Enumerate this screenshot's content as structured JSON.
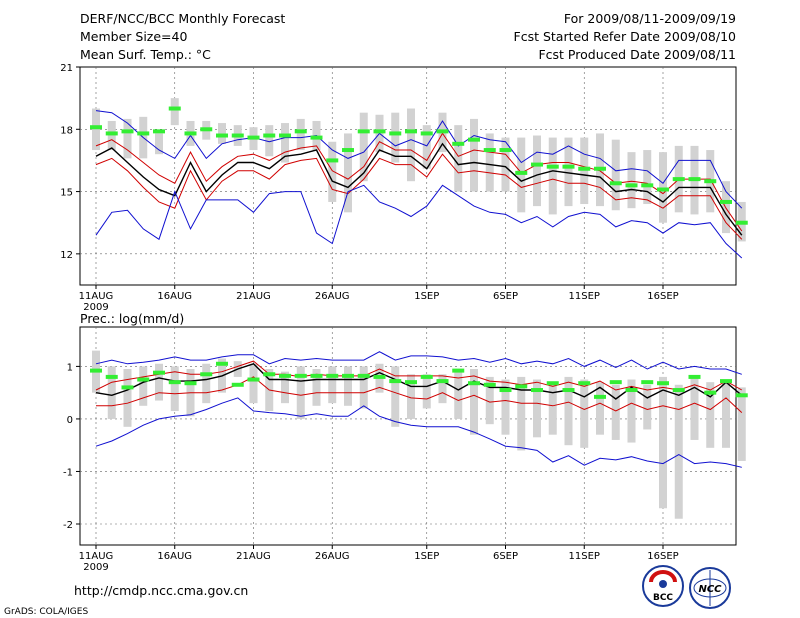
{
  "header": {
    "title": "DERF/NCC/BCC Monthly Forecast",
    "member_size": "Member Size=40",
    "variable": "Mean Surf. Temp.: °C",
    "for_period": "For 2009/08/11-2009/09/19",
    "started_refer": "Fcst Started Refer Date 2009/08/10",
    "produced": "Fcst Produced Date 2009/08/11"
  },
  "footer": {
    "url": "http://cmdp.ncc.cma.gov.cn",
    "credit": "GrADS: COLA/IGES",
    "logo_bcc": "BCC",
    "logo_ncc": "NCC"
  },
  "colors": {
    "min_max": "#1010d0",
    "spread": "#d00000",
    "mean": "#000000",
    "box": "#d2d2d2",
    "mark": "#33ee33"
  },
  "chart_data": [
    {
      "type": "line",
      "title": "Mean Surf. Temp.: °C",
      "xlabel": "",
      "ylabel": "",
      "ylim": [
        10.5,
        21
      ],
      "yticks": [
        12,
        15,
        18,
        21
      ],
      "xlim": [
        0,
        40
      ],
      "xticks": [
        {
          "label": "11AUG",
          "x": 1
        },
        {
          "label": "16AUG",
          "x": 6
        },
        {
          "label": "21AUG",
          "x": 11
        },
        {
          "label": "26AUG",
          "x": 16
        },
        {
          "label": "1SEP",
          "x": 22
        },
        {
          "label": "6SEP",
          "x": 27
        },
        {
          "label": "11SEP",
          "x": 32
        },
        {
          "label": "16SEP",
          "x": 37
        }
      ],
      "year_label": "2009",
      "grid": true,
      "series": [
        {
          "name": "max",
          "color": "#1010d0",
          "values": [
            18.9,
            18.8,
            18.3,
            17.6,
            17.0,
            16.6,
            17.7,
            16.6,
            17.3,
            17.5,
            17.6,
            17.4,
            17.6,
            17.6,
            17.7,
            17.0,
            16.6,
            16.9,
            17.8,
            17.2,
            17.5,
            17.2,
            18.4,
            17.2,
            17.7,
            17.5,
            17.4,
            16.4,
            16.9,
            16.8,
            17.2,
            16.8,
            16.6,
            16.0,
            16.1,
            16.0,
            15.4,
            16.5,
            16.5,
            16.5,
            15.0,
            14.2
          ]
        },
        {
          "name": "spread_high",
          "color": "#d00000",
          "values": [
            17.2,
            17.5,
            17.0,
            16.4,
            15.8,
            15.4,
            16.9,
            15.5,
            16.2,
            16.7,
            16.8,
            16.5,
            16.9,
            17.1,
            17.2,
            16.0,
            15.6,
            16.2,
            17.4,
            17.0,
            17.0,
            16.5,
            17.8,
            16.7,
            17.0,
            16.9,
            16.8,
            15.9,
            16.3,
            16.4,
            16.4,
            16.2,
            16.0,
            15.4,
            15.5,
            15.4,
            14.9,
            15.6,
            15.6,
            15.6,
            14.2,
            13.1
          ]
        },
        {
          "name": "mean",
          "color": "#000000",
          "values": [
            16.7,
            17.1,
            16.4,
            15.7,
            15.1,
            14.8,
            16.4,
            15.0,
            15.8,
            16.4,
            16.4,
            16.1,
            16.7,
            16.8,
            17.0,
            15.5,
            15.2,
            15.9,
            17.0,
            16.7,
            16.7,
            16.1,
            17.3,
            16.3,
            16.4,
            16.3,
            16.2,
            15.5,
            15.8,
            16.0,
            15.9,
            15.8,
            15.7,
            15.0,
            15.1,
            15.0,
            14.5,
            15.2,
            15.2,
            15.2,
            13.9,
            12.9
          ]
        },
        {
          "name": "spread_low",
          "color": "#d00000",
          "values": [
            16.3,
            16.6,
            16.0,
            15.2,
            14.5,
            14.2,
            16.0,
            14.6,
            15.5,
            16.0,
            16.0,
            15.6,
            16.3,
            16.5,
            16.6,
            15.1,
            14.9,
            15.6,
            16.6,
            16.3,
            16.3,
            15.7,
            16.8,
            15.9,
            16.0,
            15.9,
            15.8,
            15.2,
            15.4,
            15.6,
            15.4,
            15.4,
            15.2,
            14.6,
            14.7,
            14.6,
            14.2,
            14.8,
            14.8,
            14.8,
            13.5,
            12.7
          ]
        },
        {
          "name": "min",
          "color": "#1010d0",
          "values": [
            12.9,
            14.0,
            14.1,
            13.2,
            12.7,
            15.0,
            13.2,
            14.6,
            14.6,
            14.6,
            14.0,
            14.9,
            15.0,
            15.0,
            13.0,
            12.5,
            15.0,
            15.3,
            14.5,
            14.2,
            13.8,
            14.3,
            15.3,
            14.8,
            14.3,
            14.0,
            13.9,
            13.5,
            13.8,
            13.3,
            13.8,
            14.0,
            13.9,
            13.3,
            13.6,
            13.5,
            13.0,
            13.5,
            13.4,
            13.5,
            12.5,
            11.8
          ]
        }
      ],
      "boxes": {
        "color": "#d2d2d2",
        "low": [
          17.0,
          17.0,
          16.6,
          16.6,
          16.8,
          18.2,
          17.2,
          17.5,
          17.3,
          17.2,
          17.0,
          16.7,
          16.4,
          17.0,
          17.0,
          14.5,
          14.0,
          15.5,
          16.9,
          16.4,
          15.5,
          16.1,
          16.9,
          15.0,
          15.0,
          15.0,
          15.0,
          14.0,
          14.3,
          13.9,
          14.3,
          14.4,
          14.3,
          14.1,
          14.2,
          14.4,
          13.5,
          14.0,
          13.9,
          14.0,
          13.0,
          12.6
        ],
        "high": [
          19.0,
          18.4,
          18.5,
          18.6,
          17.8,
          19.5,
          18.4,
          18.4,
          18.3,
          18.2,
          18.1,
          18.2,
          18.3,
          18.5,
          18.4,
          17.4,
          17.8,
          18.8,
          18.7,
          18.8,
          19.0,
          18.2,
          18.8,
          18.2,
          18.5,
          17.8,
          17.6,
          17.6,
          17.7,
          17.6,
          17.6,
          17.6,
          17.8,
          17.5,
          16.9,
          17.0,
          16.9,
          17.2,
          17.2,
          17.0,
          15.5,
          14.5
        ]
      },
      "marks": {
        "color": "#33ee33",
        "values": [
          18.1,
          17.8,
          17.9,
          17.8,
          17.9,
          19.0,
          17.8,
          18.0,
          17.7,
          17.7,
          17.6,
          17.7,
          17.7,
          17.9,
          17.6,
          16.5,
          17.0,
          17.9,
          17.9,
          17.8,
          17.9,
          17.8,
          17.9,
          17.3,
          17.5,
          17.0,
          17.0,
          15.9,
          16.3,
          16.2,
          16.2,
          16.1,
          16.1,
          15.4,
          15.3,
          15.3,
          15.1,
          15.6,
          15.6,
          15.5,
          14.5,
          13.5
        ]
      }
    },
    {
      "type": "line",
      "title": "Prec.: log(mm/d)",
      "xlabel": "",
      "ylabel": "",
      "ylim": [
        -2.4,
        1.75
      ],
      "yticks": [
        -2,
        -1,
        0,
        1
      ],
      "xlim": [
        0,
        40
      ],
      "xticks": [
        {
          "label": "11AUG",
          "x": 1
        },
        {
          "label": "16AUG",
          "x": 6
        },
        {
          "label": "21AUG",
          "x": 11
        },
        {
          "label": "26AUG",
          "x": 16
        },
        {
          "label": "1SEP",
          "x": 22
        },
        {
          "label": "6SEP",
          "x": 27
        },
        {
          "label": "11SEP",
          "x": 32
        },
        {
          "label": "16SEP",
          "x": 37
        }
      ],
      "year_label": "2009",
      "grid": true,
      "series": [
        {
          "name": "max",
          "color": "#1010d0",
          "values": [
            1.05,
            1.12,
            1.05,
            1.08,
            1.12,
            1.18,
            1.12,
            1.12,
            1.18,
            1.22,
            1.22,
            1.05,
            1.15,
            1.12,
            1.15,
            1.12,
            1.12,
            1.12,
            1.28,
            1.12,
            1.2,
            1.2,
            1.18,
            1.12,
            1.15,
            1.08,
            1.15,
            1.05,
            1.1,
            1.05,
            1.15,
            1.0,
            1.12,
            0.98,
            1.12,
            0.95,
            1.08,
            0.95,
            1.0,
            0.95,
            0.95,
            0.85
          ]
        },
        {
          "name": "spread_high",
          "color": "#d00000",
          "values": [
            0.55,
            0.7,
            0.75,
            0.8,
            0.85,
            0.9,
            0.85,
            0.85,
            0.9,
            1.0,
            1.1,
            0.85,
            0.85,
            0.8,
            0.85,
            0.82,
            0.82,
            0.82,
            0.95,
            0.82,
            0.82,
            0.82,
            0.82,
            0.78,
            0.82,
            0.72,
            0.7,
            0.65,
            0.7,
            0.62,
            0.7,
            0.62,
            0.72,
            0.55,
            0.62,
            0.55,
            0.6,
            0.55,
            0.65,
            0.55,
            0.72,
            0.55
          ]
        },
        {
          "name": "mean",
          "color": "#000000",
          "values": [
            0.5,
            0.45,
            0.55,
            0.7,
            0.78,
            0.72,
            0.72,
            0.75,
            0.82,
            0.95,
            1.05,
            0.75,
            0.75,
            0.72,
            0.75,
            0.75,
            0.75,
            0.75,
            0.88,
            0.75,
            0.62,
            0.62,
            0.72,
            0.55,
            0.72,
            0.6,
            0.6,
            0.55,
            0.55,
            0.5,
            0.55,
            0.42,
            0.6,
            0.38,
            0.6,
            0.4,
            0.55,
            0.45,
            0.6,
            0.42,
            0.7,
            0.45
          ]
        },
        {
          "name": "spread_low",
          "color": "#d00000",
          "values": [
            0.25,
            0.25,
            0.3,
            0.4,
            0.5,
            0.48,
            0.5,
            0.5,
            0.55,
            0.65,
            0.8,
            0.55,
            0.5,
            0.45,
            0.5,
            0.5,
            0.5,
            0.5,
            0.6,
            0.5,
            0.4,
            0.38,
            0.5,
            0.35,
            0.45,
            0.32,
            0.35,
            0.3,
            0.3,
            0.25,
            0.32,
            0.18,
            0.3,
            0.15,
            0.3,
            0.18,
            0.25,
            0.18,
            0.3,
            0.18,
            0.4,
            0.12
          ]
        },
        {
          "name": "min",
          "color": "#1010d0",
          "values": [
            -0.52,
            -0.42,
            -0.28,
            -0.12,
            0.0,
            0.05,
            0.08,
            0.18,
            0.3,
            0.4,
            0.15,
            0.12,
            0.1,
            0.05,
            0.1,
            0.05,
            0.05,
            0.25,
            0.05,
            -0.05,
            -0.12,
            -0.15,
            -0.15,
            -0.15,
            -0.25,
            -0.38,
            -0.52,
            -0.55,
            -0.6,
            -0.82,
            -0.7,
            -0.88,
            -0.75,
            -0.78,
            -0.72,
            -0.8,
            -0.85,
            -0.68,
            -0.85,
            -0.82,
            -0.85,
            -0.92
          ]
        }
      ],
      "boxes": {
        "color": "#d2d2d2",
        "low": [
          0.5,
          0.0,
          -0.15,
          0.25,
          0.35,
          0.15,
          0.05,
          0.3,
          0.5,
          0.8,
          0.3,
          0.15,
          0.3,
          0.0,
          0.25,
          0.3,
          0.25,
          0.2,
          0.5,
          -0.15,
          0.0,
          0.2,
          0.3,
          0.0,
          -0.3,
          -0.1,
          -0.3,
          -0.6,
          -0.35,
          -0.3,
          -0.5,
          -0.55,
          -0.3,
          -0.4,
          -0.45,
          -0.2,
          -1.7,
          -1.9,
          -0.4,
          -0.55,
          -0.55,
          -0.8
        ],
        "high": [
          1.3,
          1.0,
          0.95,
          1.0,
          1.05,
          1.0,
          0.95,
          1.05,
          1.15,
          1.1,
          1.05,
          0.95,
          0.9,
          1.0,
          0.95,
          1.0,
          1.0,
          1.0,
          1.05,
          1.0,
          0.85,
          0.85,
          0.85,
          0.9,
          0.95,
          0.8,
          0.75,
          0.8,
          0.75,
          0.65,
          0.8,
          0.75,
          0.7,
          0.65,
          0.75,
          0.65,
          0.8,
          0.65,
          0.8,
          0.7,
          0.75,
          0.6
        ]
      },
      "marks": {
        "color": "#33ee33",
        "values": [
          0.92,
          0.8,
          0.6,
          0.75,
          0.88,
          0.7,
          0.68,
          0.85,
          1.05,
          0.65,
          0.75,
          0.85,
          0.82,
          0.82,
          0.82,
          0.82,
          0.82,
          0.82,
          0.8,
          0.72,
          0.7,
          0.8,
          0.72,
          0.92,
          0.68,
          0.65,
          0.55,
          0.62,
          0.55,
          0.68,
          0.55,
          0.68,
          0.42,
          0.7,
          0.55,
          0.7,
          0.68,
          0.55,
          0.8,
          0.5,
          0.72,
          0.45
        ]
      }
    }
  ]
}
